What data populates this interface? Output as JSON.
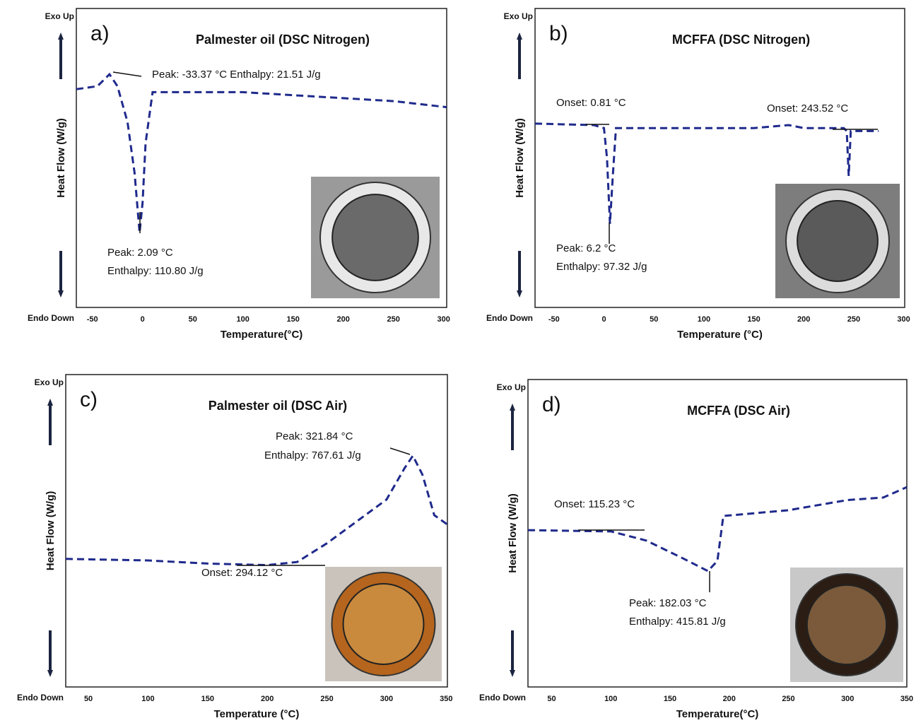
{
  "chart_data": [
    {
      "type": "line",
      "panel_label": "a)",
      "title": "Palmester oil  (DSC Nitrogen)",
      "xlabel": "Temperature(°C)",
      "ylabel": "Heat Flow (W/g)",
      "top_label": "Exo Up",
      "bottom_label": "Endo Down",
      "color": "#1f2a8c",
      "xlim": [
        -66,
        303
      ],
      "xticks": [
        -50,
        0,
        50,
        100,
        150,
        200,
        250,
        300
      ],
      "ylim": [
        0,
        100
      ],
      "x": [
        -66,
        -45,
        -33,
        -25,
        -15,
        -8,
        -3,
        0,
        3,
        10,
        50,
        100,
        150,
        200,
        250,
        303
      ],
      "values": [
        73,
        74,
        78,
        74,
        62,
        45,
        25,
        35,
        55,
        72,
        72,
        72,
        71,
        70,
        69,
        67
      ],
      "annotations": [
        "Peak: -33.37 °C  Enthalpy: 21.51 J/g",
        "Peak: 2.09 °C",
        "Enthalpy: 110.80 J/g"
      ]
    },
    {
      "type": "line",
      "panel_label": "b)",
      "title": "MCFFA (DSC Nitrogen)",
      "xlabel": "Temperature (°C)",
      "ylabel": "Heat Flow (W/g)",
      "top_label": "Exo Up",
      "bottom_label": "Endo Down",
      "color": "#1f2a8c",
      "xlim": [
        -69,
        301
      ],
      "xticks": [
        -50,
        0,
        50,
        100,
        150,
        200,
        250,
        300
      ],
      "ylim": [
        0,
        100
      ],
      "x": [
        -69,
        -10,
        0,
        3,
        6,
        9,
        12,
        50,
        100,
        150,
        185,
        200,
        240,
        243,
        245,
        247,
        250,
        275
      ],
      "values": [
        61.5,
        61,
        60,
        50,
        28,
        45,
        60,
        60,
        60,
        60,
        61,
        60,
        60,
        59,
        44,
        59,
        59,
        59
      ],
      "annotations": [
        "Onset: 0.81 °C",
        "Onset: 243.52 °C",
        "Peak: 6.2 °C",
        "Enthalpy: 97.32 J/g"
      ]
    },
    {
      "type": "line",
      "panel_label": "c)",
      "title": "Palmester oil  (DSC Air)",
      "xlabel": "Temperature (°C)",
      "ylabel": "Heat Flow (W/g)",
      "top_label": "Exo Up",
      "bottom_label": "Endo Down",
      "color": "#1f2a8c",
      "xlim": [
        31,
        351
      ],
      "xticks": [
        50,
        100,
        150,
        200,
        250,
        300,
        350
      ],
      "ylim": [
        0,
        100
      ],
      "x": [
        31,
        100,
        150,
        200,
        225,
        250,
        275,
        300,
        315,
        322,
        330,
        340,
        351
      ],
      "values": [
        41,
        40.5,
        39.5,
        39,
        40,
        46,
        53,
        60,
        70,
        74,
        68,
        55,
        52
      ],
      "annotations": [
        "Peak: 321.84 °C",
        "Enthalpy: 767.61 J/g",
        "Onset: 294.12 °C"
      ]
    },
    {
      "type": "line",
      "panel_label": "d)",
      "title": "MCFFA (DSC Air)",
      "xlabel": "Temperature(°C)",
      "ylabel": "Heat Flow (W/g)",
      "top_label": "Exo Up",
      "bottom_label": "Endo Down",
      "color": "#1f2a8c",
      "xlim": [
        30,
        350
      ],
      "xticks": [
        50,
        100,
        150,
        200,
        250,
        300,
        350
      ],
      "ylim": [
        0,
        100
      ],
      "x": [
        30,
        100,
        130,
        160,
        182,
        190,
        195,
        250,
        300,
        330,
        350
      ],
      "values": [
        51,
        50.6,
        47.6,
        42,
        37.7,
        41,
        55.6,
        57.5,
        60.8,
        61.6,
        65
      ],
      "annotations": [
        "Onset: 115.23 °C",
        "Peak: 182.03 °C",
        "Enthalpy: 415.81 J/g"
      ]
    }
  ]
}
